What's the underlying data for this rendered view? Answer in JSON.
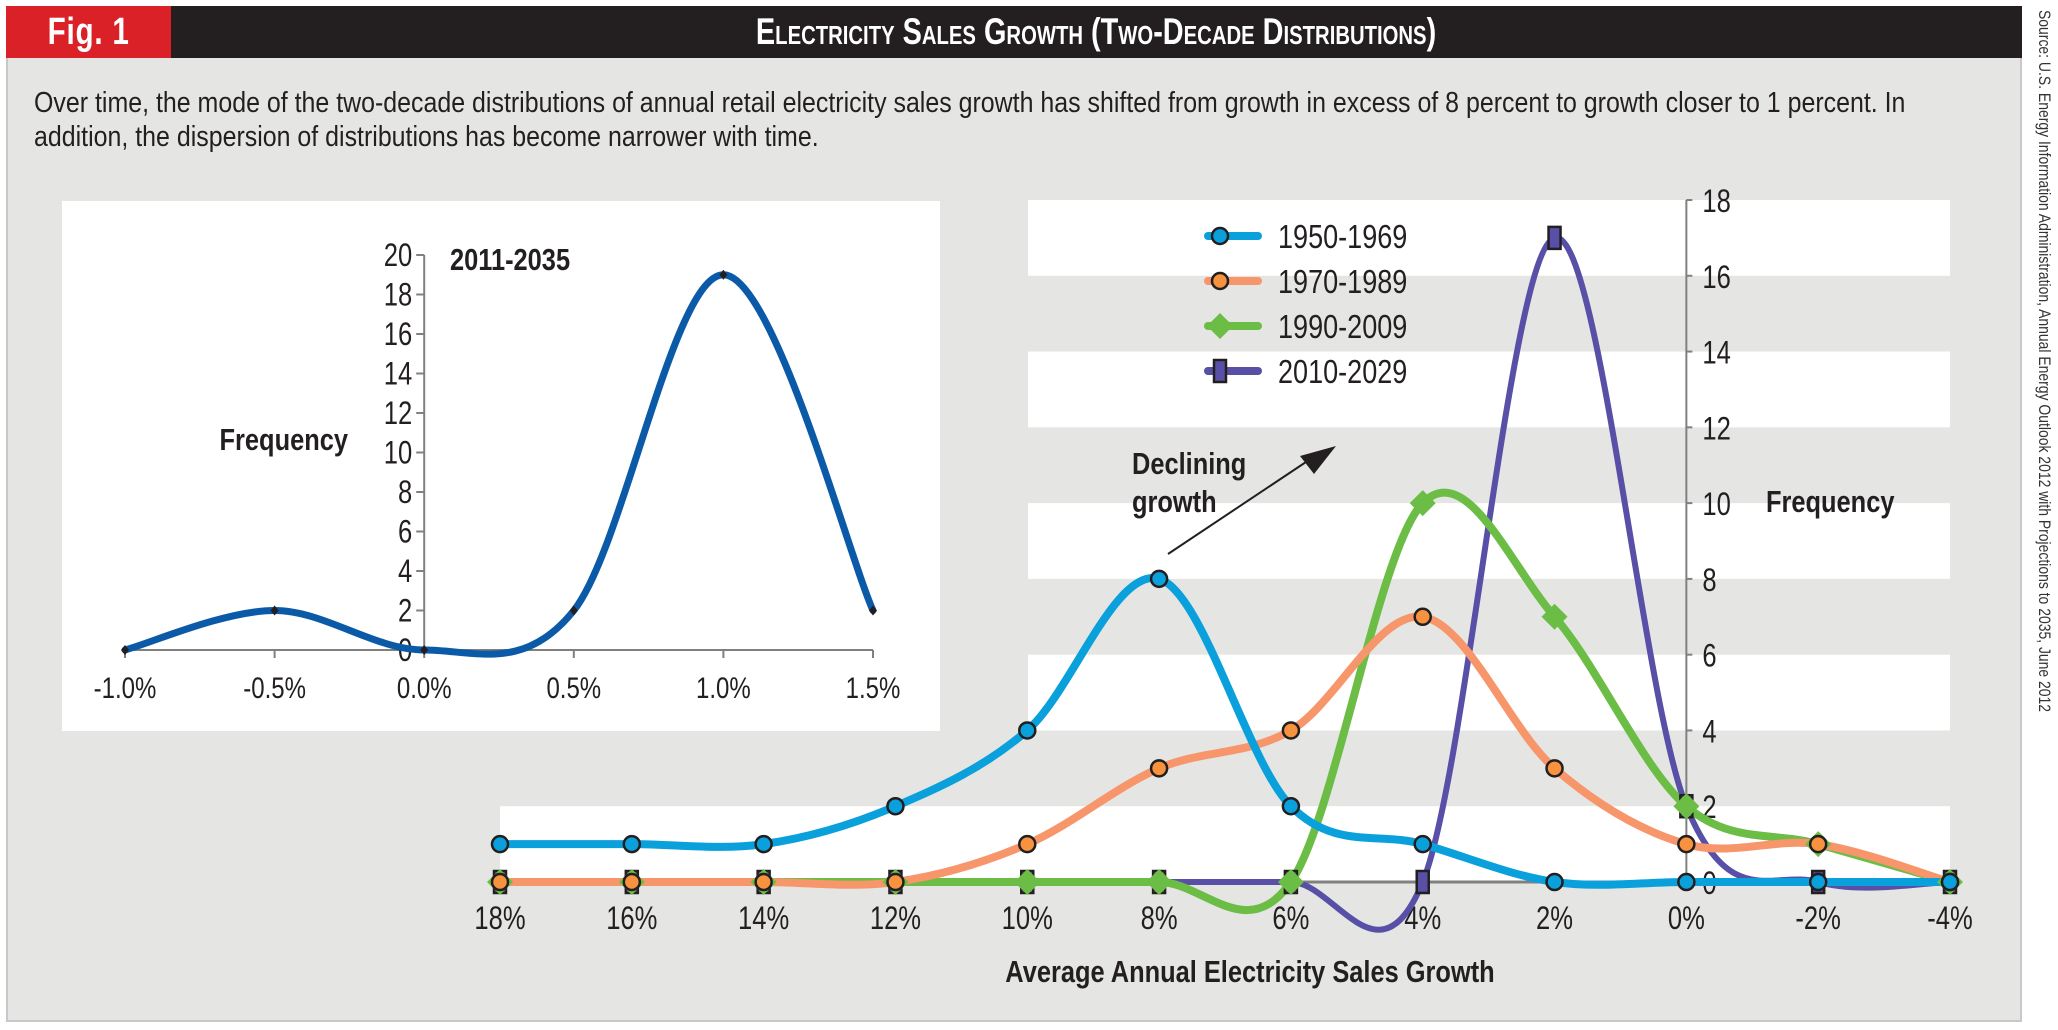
{
  "figure_label": "Fig. 1",
  "title": "Electricity Sales Growth (Two-Decade Distributions)",
  "caption": "Over time, the mode of the two-decade distributions of annual retail electricity sales growth has shifted from growth in excess of 8 percent to growth closer to 1 percent. In addition, the dispersion of distributions has become narrower with time.",
  "source": "Source: U.S. Energy Information Administration, Annual Energy Outlook 2012 with Projections to 2035, June 2012",
  "colors": {
    "header_bg": "#231f20",
    "badge_bg": "#da2128",
    "panel_bg": "#e5e6e4",
    "band_white": "#ffffff",
    "inset_line": "#0a5aa8"
  },
  "chart_data": [
    {
      "type": "line",
      "title": "2011-2035",
      "xlabel": "",
      "ylabel": "Frequency",
      "x": [
        -1.0,
        -0.5,
        0.0,
        0.5,
        1.0,
        1.5
      ],
      "x_tick_labels": [
        "-1.0%",
        "-0.5%",
        "0.0%",
        "0.5%",
        "1.0%",
        "1.5%"
      ],
      "y_ticks": [
        0,
        2,
        4,
        6,
        8,
        10,
        12,
        14,
        16,
        18,
        20
      ],
      "ylim": [
        0,
        20
      ],
      "xlim": [
        -1.0,
        1.5
      ],
      "smoothed": true,
      "grid": false,
      "series": [
        {
          "name": "2011-2035",
          "color": "#0a5aa8",
          "values": [
            0,
            2,
            0,
            2,
            19,
            2
          ]
        }
      ]
    },
    {
      "type": "line",
      "title": "",
      "xlabel": "Average Annual Electricity Sales Growth",
      "ylabel": "Frequency",
      "x": [
        18,
        16,
        14,
        12,
        10,
        8,
        6,
        4,
        2,
        0,
        -2,
        -4
      ],
      "x_tick_labels": [
        "18%",
        "16%",
        "14%",
        "12%",
        "10%",
        "8%",
        "6%",
        "4%",
        "2%",
        "0%",
        "-2%",
        "-4%"
      ],
      "x_direction": "descending",
      "y_ticks": [
        0,
        2,
        4,
        6,
        8,
        10,
        12,
        14,
        16,
        18
      ],
      "ylim": [
        0,
        18
      ],
      "y_axis_position": "x = 0%",
      "background_bands": "alternating white/grey every 2 units",
      "legend_placement": "top-center",
      "smoothed": true,
      "annotation": {
        "text_line1": "Declining",
        "text_line2": "growth",
        "arrow": "up-right"
      },
      "series": [
        {
          "name": "1950-1969",
          "color": "#0aa0dc",
          "marker": "circle",
          "marker_fill": "#0aa0dc",
          "values": [
            1,
            1,
            1,
            2,
            4,
            8,
            2,
            1,
            0,
            0,
            0,
            0
          ]
        },
        {
          "name": "1970-1989",
          "color": "#f7956b",
          "marker": "circle",
          "marker_fill": "#f7923f",
          "values": [
            0,
            0,
            0,
            0,
            1,
            3,
            4,
            7,
            3,
            1,
            1,
            0
          ]
        },
        {
          "name": "1990-2009",
          "color": "#6cbd45",
          "marker": "diamond",
          "marker_fill": "#6cbd45",
          "values": [
            0,
            0,
            0,
            0,
            0,
            0,
            0,
            10,
            7,
            2,
            1,
            0
          ]
        },
        {
          "name": "2010-2029",
          "color": "#5750a6",
          "marker": "square",
          "marker_fill": "#5750a6",
          "values": [
            0,
            0,
            0,
            0,
            0,
            0,
            0,
            0,
            17,
            2,
            0,
            0
          ]
        }
      ]
    }
  ]
}
